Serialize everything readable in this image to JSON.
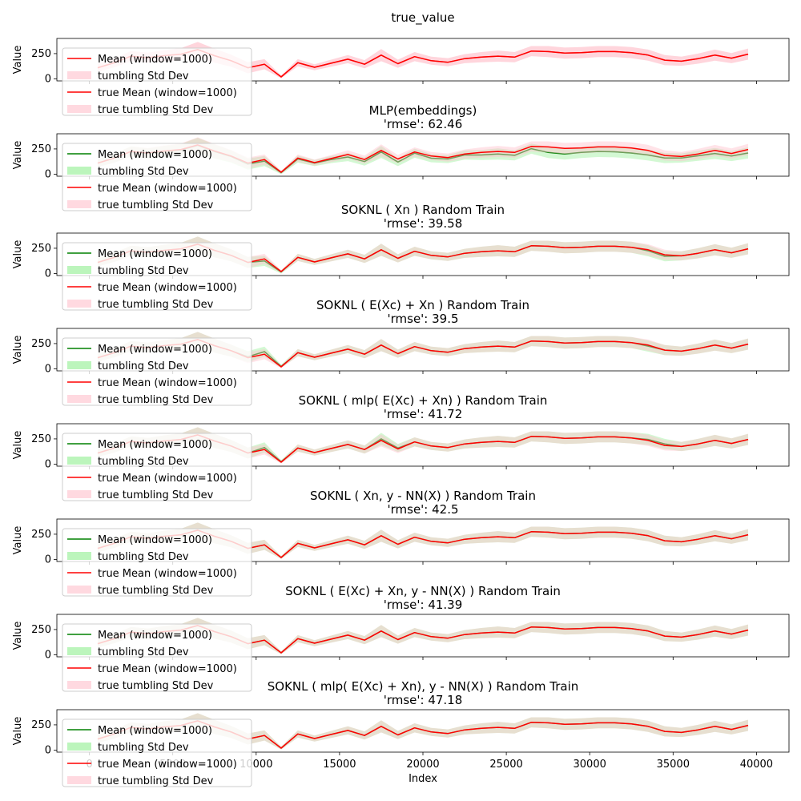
{
  "chart_data": [
    {
      "type": "line",
      "title": "true_value",
      "ylabel": "Value",
      "ylim": [
        -20,
        400
      ],
      "yticks": [
        0,
        250
      ],
      "xlim": [
        -1950,
        41950
      ],
      "legend": [
        "Mean (window=1000)",
        "tumbling Std Dev",
        "true Mean (window=1000)",
        "true tumbling Std Dev"
      ],
      "model_color": "#ff0000",
      "model_offset": [
        0,
        0,
        0,
        0,
        0,
        0,
        0,
        0,
        0,
        0,
        0,
        0,
        0,
        0,
        0,
        0,
        0,
        0,
        0,
        0,
        0,
        0,
        0,
        0,
        0,
        0,
        0,
        0,
        0,
        0,
        0,
        0,
        0,
        0,
        0,
        0,
        0,
        0,
        0,
        0
      ]
    },
    {
      "type": "line",
      "title": "MLP(embeddings)",
      "subtitle": "'rmse': 62.46",
      "ylabel": "Value",
      "ylim": [
        -20,
        400
      ],
      "yticks": [
        0,
        250
      ],
      "xlim": [
        -1950,
        41950
      ],
      "legend": [
        "Mean (window=1000)",
        "tumbling Std Dev",
        "true Mean (window=1000)",
        "true tumbling Std Dev"
      ],
      "model_color": "#008000",
      "model_offset": [
        0,
        0,
        0,
        -5,
        -5,
        -5,
        -5,
        -5,
        -5,
        -10,
        -15,
        -5,
        -10,
        -5,
        -10,
        -25,
        -20,
        -15,
        -30,
        -12,
        -22,
        -15,
        -10,
        -25,
        -25,
        -28,
        -22,
        -55,
        -55,
        -45,
        -45,
        -48,
        -50,
        -45,
        -25,
        -15,
        -18,
        -30,
        -25,
        -35
      ]
    },
    {
      "type": "line",
      "title": "SOKNL ( Xn ) Random Train",
      "subtitle": "'rmse': 39.58",
      "ylabel": "Value",
      "ylim": [
        -20,
        400
      ],
      "yticks": [
        0,
        250
      ],
      "xlim": [
        -1950,
        41950
      ],
      "legend": [
        "Mean (window=1000)",
        "tumbling Std Dev",
        "true Mean (window=1000)",
        "true tumbling Std Dev"
      ],
      "model_color": "#008000",
      "model_offset": [
        0,
        0,
        0,
        0,
        0,
        0,
        0,
        0,
        0,
        0,
        -20,
        -5,
        0,
        0,
        0,
        0,
        0,
        0,
        0,
        0,
        0,
        0,
        0,
        0,
        0,
        0,
        0,
        0,
        0,
        0,
        0,
        0,
        0,
        -10,
        -15,
        0,
        0,
        0,
        0,
        0
      ]
    },
    {
      "type": "line",
      "title": "SOKNL ( E(Xc) + Xn ) Random Train",
      "subtitle": "'rmse': 39.5",
      "ylabel": "Value",
      "ylim": [
        -20,
        400
      ],
      "yticks": [
        0,
        250
      ],
      "xlim": [
        -1950,
        41950
      ],
      "legend": [
        "Mean (window=1000)",
        "tumbling Std Dev",
        "true Mean (window=1000)",
        "true tumbling Std Dev"
      ],
      "model_color": "#008000",
      "model_offset": [
        0,
        0,
        0,
        0,
        0,
        0,
        0,
        0,
        0,
        10,
        25,
        5,
        0,
        0,
        0,
        0,
        0,
        0,
        0,
        0,
        0,
        0,
        0,
        0,
        0,
        0,
        0,
        0,
        0,
        0,
        0,
        0,
        0,
        -10,
        0,
        0,
        0,
        0,
        0,
        0
      ]
    },
    {
      "type": "line",
      "title": "SOKNL ( mlp( E(Xc) + Xn) ) Random Train",
      "subtitle": "'rmse': 41.72",
      "ylabel": "Value",
      "ylim": [
        -20,
        400
      ],
      "yticks": [
        0,
        250
      ],
      "xlim": [
        -1950,
        41950
      ],
      "legend": [
        "Mean (window=1000)",
        "tumbling Std Dev",
        "true Mean (window=1000)",
        "true tumbling Std Dev"
      ],
      "model_color": "#008000",
      "model_offset": [
        0,
        0,
        0,
        0,
        0,
        0,
        0,
        0,
        0,
        0,
        20,
        5,
        0,
        0,
        0,
        0,
        0,
        15,
        10,
        0,
        0,
        0,
        0,
        0,
        0,
        0,
        0,
        0,
        0,
        0,
        0,
        0,
        0,
        10,
        15,
        0,
        0,
        0,
        0,
        0
      ]
    },
    {
      "type": "line",
      "title": "SOKNL ( Xn, y - NN(X) ) Random Train",
      "subtitle": "'rmse': 42.5",
      "ylabel": "Value",
      "ylim": [
        -20,
        400
      ],
      "yticks": [
        0,
        250
      ],
      "xlim": [
        -1950,
        41950
      ],
      "legend": [
        "Mean (window=1000)",
        "tumbling Std Dev",
        "true Mean (window=1000)",
        "true tumbling Std Dev"
      ],
      "model_color": "#008000",
      "model_offset": [
        0,
        0,
        0,
        0,
        0,
        0,
        0,
        0,
        0,
        0,
        0,
        0,
        0,
        0,
        0,
        0,
        0,
        0,
        0,
        0,
        0,
        0,
        0,
        0,
        0,
        0,
        0,
        0,
        0,
        0,
        0,
        0,
        0,
        0,
        0,
        0,
        0,
        0,
        0,
        0
      ]
    },
    {
      "type": "line",
      "title": "SOKNL ( E(Xc) + Xn,  y - NN(X) ) Random Train",
      "subtitle": "'rmse': 41.39",
      "ylabel": "Value",
      "ylim": [
        -20,
        400
      ],
      "yticks": [
        0,
        250
      ],
      "xlim": [
        -1950,
        41950
      ],
      "legend": [
        "Mean (window=1000)",
        "tumbling Std Dev",
        "true Mean (window=1000)",
        "true tumbling Std Dev"
      ],
      "model_color": "#008000",
      "model_offset": [
        0,
        0,
        0,
        0,
        0,
        0,
        0,
        0,
        0,
        0,
        0,
        0,
        0,
        0,
        0,
        0,
        0,
        0,
        0,
        0,
        0,
        0,
        0,
        0,
        0,
        0,
        0,
        0,
        0,
        0,
        0,
        0,
        0,
        0,
        0,
        0,
        0,
        0,
        0,
        0
      ]
    },
    {
      "type": "line",
      "title": "SOKNL ( mlp( E(Xc) + Xn),  y - NN(X) ) Random Train",
      "subtitle": "'rmse': 47.18",
      "ylabel": "Value",
      "ylim": [
        -20,
        400
      ],
      "yticks": [
        0,
        250
      ],
      "xlim": [
        -1950,
        41950
      ],
      "legend": [
        "Mean (window=1000)",
        "tumbling Std Dev",
        "true Mean (window=1000)",
        "true tumbling Std Dev"
      ],
      "model_color": "#008000",
      "model_offset": [
        0,
        0,
        0,
        0,
        0,
        0,
        0,
        0,
        0,
        0,
        0,
        0,
        0,
        0,
        0,
        0,
        0,
        0,
        0,
        0,
        0,
        0,
        0,
        0,
        0,
        0,
        0,
        0,
        0,
        0,
        0,
        0,
        0,
        0,
        0,
        0,
        0,
        0,
        0,
        0
      ]
    }
  ],
  "shared": {
    "x": [
      500,
      1500,
      2500,
      3500,
      4500,
      5500,
      6500,
      7500,
      8500,
      9500,
      10500,
      11500,
      12500,
      13500,
      14500,
      15500,
      16500,
      17500,
      18500,
      19500,
      20500,
      21500,
      22500,
      23500,
      24500,
      25500,
      26500,
      27500,
      28500,
      29500,
      30500,
      31500,
      32500,
      33500,
      34500,
      35500,
      36500,
      37500,
      38500,
      39500
    ],
    "true_mean": [
      110,
      160,
      225,
      210,
      230,
      245,
      290,
      230,
      180,
      110,
      145,
      20,
      160,
      115,
      155,
      195,
      145,
      235,
      150,
      220,
      180,
      165,
      200,
      215,
      225,
      215,
      275,
      270,
      255,
      260,
      270,
      270,
      260,
      235,
      185,
      175,
      200,
      235,
      205,
      245
    ],
    "true_std": [
      40,
      45,
      50,
      50,
      55,
      60,
      75,
      70,
      60,
      55,
      50,
      15,
      35,
      30,
      35,
      40,
      40,
      60,
      40,
      45,
      40,
      40,
      45,
      50,
      55,
      50,
      50,
      55,
      55,
      55,
      55,
      55,
      55,
      55,
      50,
      45,
      50,
      55,
      50,
      55
    ],
    "xticks": [
      0,
      5000,
      10000,
      15000,
      20000,
      25000,
      30000,
      35000,
      40000
    ],
    "xtick_labels": [
      "0",
      "5000",
      "10000",
      "15000",
      "20000",
      "25000",
      "30000",
      "35000",
      "40000"
    ],
    "xlabel": "Index",
    "true_color": "#ff0000",
    "green_fill": "#90ee90",
    "pink_fill": "#ffc0cb"
  }
}
